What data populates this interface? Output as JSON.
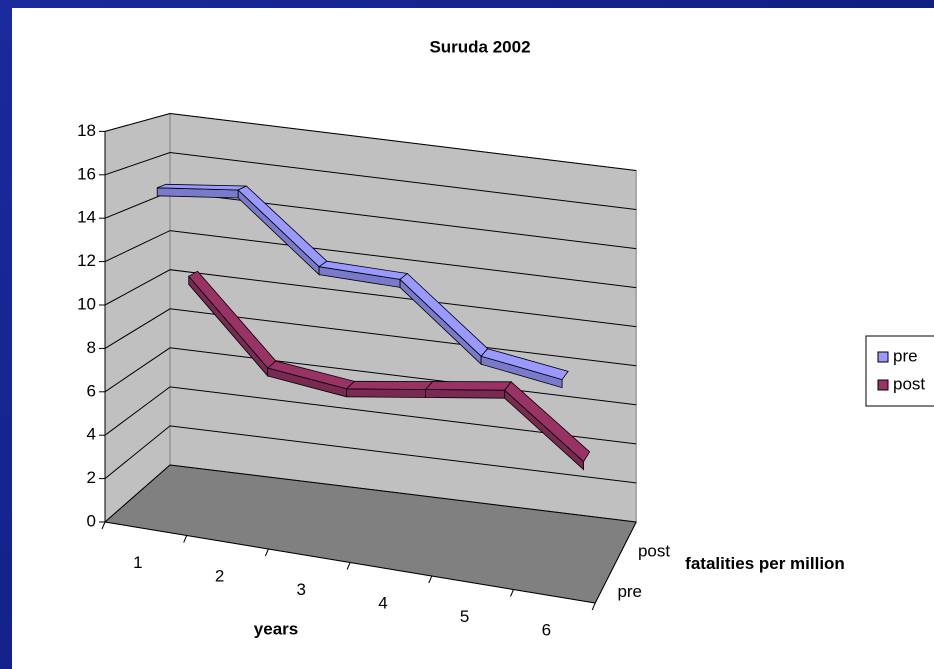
{
  "chart_data": {
    "type": "line3d",
    "title": "Suruda 2002",
    "categories": [
      "1",
      "2",
      "3",
      "4",
      "5",
      "6"
    ],
    "series": [
      {
        "name": "pre",
        "color": "#9999ff",
        "values": [
          15.5,
          16,
          13,
          13,
          10,
          9.5
        ]
      },
      {
        "name": "post",
        "color": "#993366",
        "values": [
          10.5,
          6.5,
          6,
          6.5,
          7,
          4
        ]
      }
    ],
    "ylim": [
      0,
      18
    ],
    "yticks": [
      0,
      2,
      4,
      6,
      8,
      10,
      12,
      14,
      16,
      18
    ],
    "x_label": "years",
    "z_label": "fatalities per million",
    "grid": true,
    "legend": "right"
  }
}
